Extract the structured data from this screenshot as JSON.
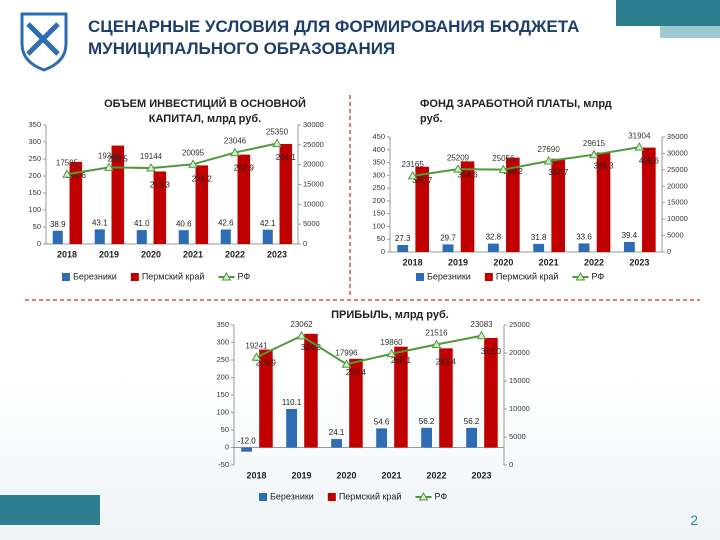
{
  "header": {
    "title": "СЦЕНАРНЫЕ УСЛОВИЯ ДЛЯ ФОРМИРОВАНИЯ БЮДЖЕТА МУНИЦИПАЛЬНОГО ОБРАЗОВАНИЯ"
  },
  "page_number": 2,
  "chart_data": [
    {
      "type": "bar-line",
      "title": "ОБЪЕМ ИНВЕСТИЦИЙ В ОСНОВНОЙ КАПИТАЛ, млрд руб.",
      "categories": [
        "2018",
        "2019",
        "2020",
        "2021",
        "2022",
        "2023"
      ],
      "ylim": [
        0,
        350
      ],
      "yticks": [
        0,
        50,
        100,
        150,
        200,
        250,
        300,
        350
      ],
      "y2lim": [
        0,
        30000
      ],
      "y2ticks": [
        0,
        5000,
        10000,
        15000,
        20000,
        25000,
        30000
      ],
      "series": [
        {
          "name": "Березники",
          "color": "#2e6db4",
          "values": [
            38.9,
            43.1,
            41.0,
            40.6,
            42.6,
            42.1
          ],
          "value_labels": [
            "38.9",
            "43.1",
            "41.0",
            "40.6",
            "42.6",
            "42.1"
          ]
        },
        {
          "name": "Пермский край",
          "color": "#c00000",
          "values": [
            241.6,
            289.5,
            213.3,
            231.2,
            262.9,
            294.1
          ],
          "value_labels": [
            "241.6",
            "289.5",
            "213.3",
            "231.2",
            "262.9",
            "294.1"
          ]
        },
        {
          "name": "РФ",
          "color": "#4e9a3a",
          "axis": "y2",
          "values": [
            17595,
            19318,
            19144,
            20095,
            23046,
            25350
          ]
        }
      ]
    },
    {
      "type": "bar-line",
      "title": "ФОНД ЗАРАБОТНОЙ ПЛАТЫ, млрд руб.",
      "categories": [
        "2018",
        "2019",
        "2020",
        "2021",
        "2022",
        "2023"
      ],
      "ylim": [
        0,
        450
      ],
      "yticks": [
        0,
        50,
        100,
        150,
        200,
        250,
        300,
        350,
        400,
        450
      ],
      "y2lim": [
        0,
        35000
      ],
      "y2ticks": [
        0,
        5000,
        10000,
        15000,
        20000,
        25000,
        30000,
        35000
      ],
      "series": [
        {
          "name": "Березники",
          "color": "#2e6db4",
          "values": [
            27.3,
            29.7,
            32.8,
            31.8,
            33.6,
            39.4
          ],
          "value_labels": [
            "27.3",
            "29.7",
            "32.8",
            "31.8",
            "33.6",
            "39.4"
          ]
        },
        {
          "name": "Пермский край",
          "color": "#c00000",
          "values": [
            333.7,
            354.6,
            369.2,
            364.7,
            389.3,
            408.6
          ],
          "value_labels": [
            "333.7",
            "354.6",
            "369.2",
            "364.7",
            "389.3",
            "408.6"
          ]
        },
        {
          "name": "РФ",
          "color": "#4e9a3a",
          "axis": "y2",
          "values": [
            23165,
            25209,
            25056,
            27690,
            29615,
            31904
          ]
        }
      ]
    },
    {
      "type": "bar-line",
      "title": "ПРИБЫЛЬ, млрд руб.",
      "categories": [
        "2018",
        "2019",
        "2020",
        "2021",
        "2022",
        "2023"
      ],
      "ylim": [
        -50,
        350
      ],
      "yticks": [
        -50,
        0,
        50,
        100,
        150,
        200,
        250,
        300,
        350
      ],
      "y2lim": [
        0,
        25000
      ],
      "y2ticks": [
        0,
        5000,
        10000,
        15000,
        20000,
        25000
      ],
      "series": [
        {
          "name": "Березники",
          "color": "#2e6db4",
          "values": [
            -12.0,
            110.1,
            24.1,
            54.6,
            56.2,
            56.2
          ],
          "value_labels": [
            "-12.0",
            "110.1",
            "24.1",
            "54.6",
            "56.2",
            "56.2"
          ]
        },
        {
          "name": "Пермский край",
          "color": "#c00000",
          "values": [
            279.9,
            324.8,
            253.4,
            288.1,
            283.4,
            313.0
          ],
          "value_labels": [
            "279.9",
            "324.8",
            "253.4",
            "288.1",
            "283.4",
            "313.0"
          ]
        },
        {
          "name": "РФ",
          "color": "#4e9a3a",
          "axis": "y2",
          "values": [
            19241,
            23062,
            17996,
            19860,
            21516,
            23083
          ]
        }
      ]
    }
  ]
}
